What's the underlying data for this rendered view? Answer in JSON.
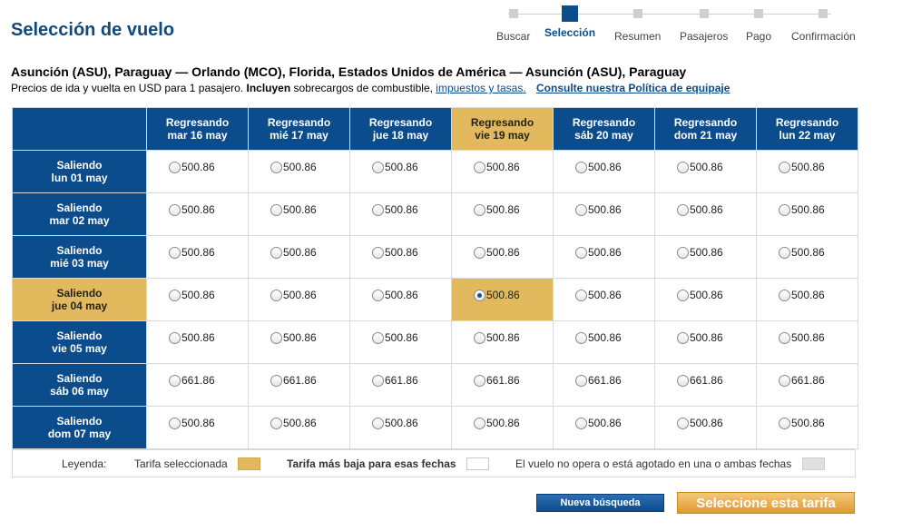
{
  "page": {
    "title": "Selección de vuelo"
  },
  "steps": [
    {
      "label": "Buscar"
    },
    {
      "label": "Selección"
    },
    {
      "label": "Resumen"
    },
    {
      "label": "Pasajeros"
    },
    {
      "label": "Pago"
    },
    {
      "label": "Confirmación"
    }
  ],
  "active_step_index": 1,
  "route": "Asunción (ASU), Paraguay — Orlando (MCO), Florida, Estados Unidos de América — Asunción (ASU), Paraguay",
  "note": {
    "text": "Precios de ida y vuelta en USD para 1 pasajero.",
    "bold": "Incluyen",
    "text2": "sobrecargos de combustible,",
    "link": "impuestos y tasas.",
    "policy_link": "Consulte nuestra Política de equipaje"
  },
  "returns": [
    {
      "prefix": "Regresando",
      "date": "mar 16 may"
    },
    {
      "prefix": "Regresando",
      "date": "mié 17 may"
    },
    {
      "prefix": "Regresando",
      "date": "jue 18 may"
    },
    {
      "prefix": "Regresando",
      "date": "vie 19 may"
    },
    {
      "prefix": "Regresando",
      "date": "sáb 20 may"
    },
    {
      "prefix": "Regresando",
      "date": "dom 21 may"
    },
    {
      "prefix": "Regresando",
      "date": "lun 22 may"
    }
  ],
  "departures": [
    {
      "prefix": "Saliendo",
      "date": "lun 01 may",
      "prices": [
        "500.86",
        "500.86",
        "500.86",
        "500.86",
        "500.86",
        "500.86",
        "500.86"
      ]
    },
    {
      "prefix": "Saliendo",
      "date": "mar 02 may",
      "prices": [
        "500.86",
        "500.86",
        "500.86",
        "500.86",
        "500.86",
        "500.86",
        "500.86"
      ]
    },
    {
      "prefix": "Saliendo",
      "date": "mié 03 may",
      "prices": [
        "500.86",
        "500.86",
        "500.86",
        "500.86",
        "500.86",
        "500.86",
        "500.86"
      ]
    },
    {
      "prefix": "Saliendo",
      "date": "jue 04 may",
      "prices": [
        "500.86",
        "500.86",
        "500.86",
        "500.86",
        "500.86",
        "500.86",
        "500.86"
      ]
    },
    {
      "prefix": "Saliendo",
      "date": "vie 05 may",
      "prices": [
        "500.86",
        "500.86",
        "500.86",
        "500.86",
        "500.86",
        "500.86",
        "500.86"
      ]
    },
    {
      "prefix": "Saliendo",
      "date": "sáb 06 may",
      "prices": [
        "661.86",
        "661.86",
        "661.86",
        "661.86",
        "661.86",
        "661.86",
        "661.86"
      ]
    },
    {
      "prefix": "Saliendo",
      "date": "dom 07 may",
      "prices": [
        "500.86",
        "500.86",
        "500.86",
        "500.86",
        "500.86",
        "500.86",
        "500.86"
      ]
    }
  ],
  "selected": {
    "row": 3,
    "col": 3
  },
  "legend": {
    "label": "Leyenda:",
    "selected": "Tarifa seleccionada",
    "lowest": "Tarifa más baja para esas fechas",
    "unavailable": "El vuelo no opera o está agotado en una o ambas fechas"
  },
  "buttons": {
    "new_search": "Nueva búsqueda",
    "select_fare": "Seleccione esta tarifa"
  },
  "colors": {
    "header_blue": "#0b4c8c",
    "selected_gold": "#e2b95c",
    "title_blue": "#13487b"
  }
}
